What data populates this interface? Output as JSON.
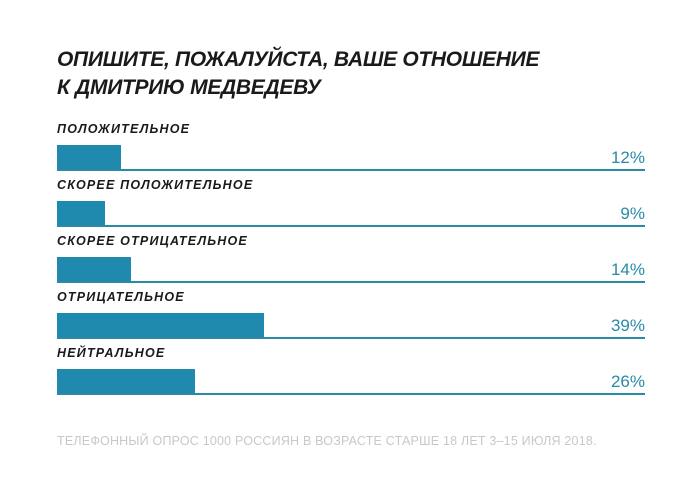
{
  "chart_data": {
    "type": "bar",
    "orientation": "horizontal",
    "title": "ОПИШИТЕ, ПОЖАЛУЙСТА, ВАШЕ ОТНОШЕНИЕ К ДМИТРИЮ МЕДВЕДЕВУ",
    "title_lines": [
      "ОПИШИТЕ, ПОЖАЛУЙСТА, ВАШЕ ОТНОШЕНИЕ",
      "К ДМИТРИЮ МЕДВЕДЕВУ"
    ],
    "categories": [
      "ПОЛОЖИТЕЛЬНОЕ",
      "СКОРЕЕ ПОЛОЖИТЕЛЬНОЕ",
      "СКОРЕЕ ОТРИЦАТЕЛЬНОЕ",
      "ОТРИЦАТЕЛЬНОЕ",
      "НЕЙТРАЛЬНОЕ"
    ],
    "values": [
      12,
      9,
      14,
      39,
      26
    ],
    "value_labels": [
      "12%",
      "9%",
      "14%",
      "39%",
      "26%"
    ],
    "unit": "%",
    "xlim": [
      0,
      111
    ],
    "grid": false,
    "bar_color": "#1f8aae",
    "footnote": "ТЕЛЕФОННЫЙ ОПРОС 1000 РОССИЯН В ВОЗРАСТЕ СТАРШЕ 18 ЛЕТ 3–15 ИЮЛЯ 2018."
  }
}
